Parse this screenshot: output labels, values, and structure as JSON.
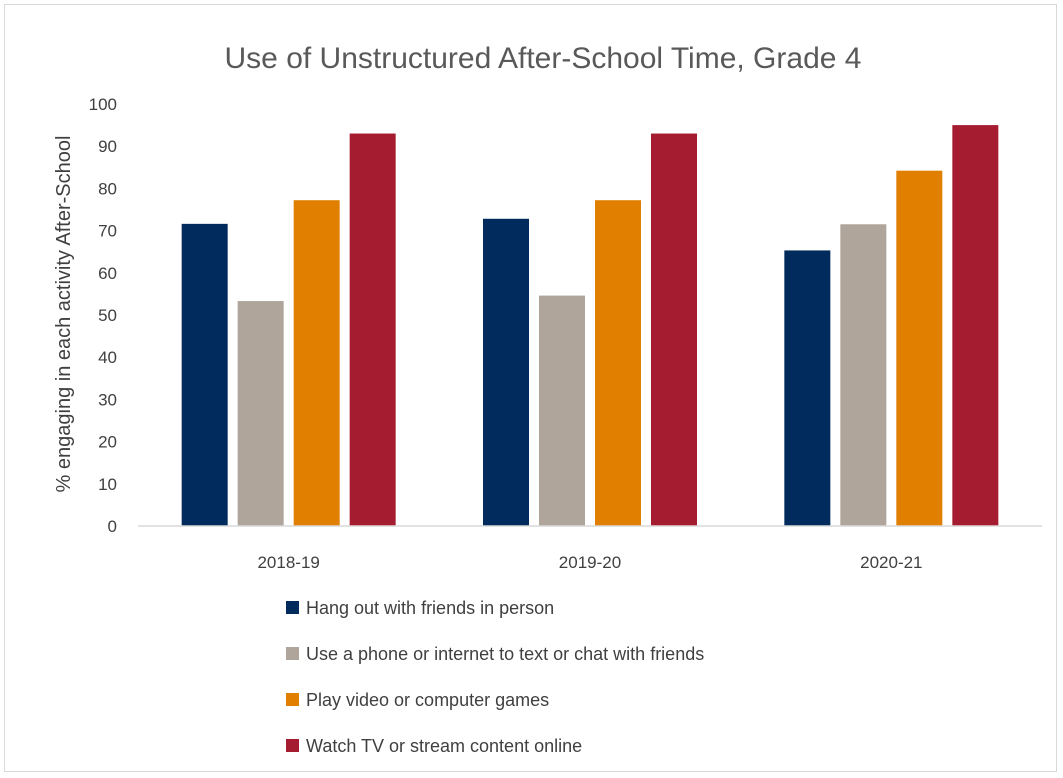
{
  "chart_data": {
    "type": "bar",
    "title": "Use of Unstructured After-School Time, Grade 4",
    "xlabel": "",
    "ylabel": "% engaging in each activity After-School",
    "categories": [
      "2018-19",
      "2019-20",
      "2020-21"
    ],
    "ylim": [
      0,
      100
    ],
    "yticks": [
      0,
      10,
      20,
      30,
      40,
      50,
      60,
      70,
      80,
      90,
      100
    ],
    "grid": false,
    "legend_position": "bottom",
    "series": [
      {
        "name": "Hang out with friends in person",
        "color": "#002b5c",
        "values": [
          71.6,
          72.8,
          65.3
        ]
      },
      {
        "name": "Use a phone or internet to text or chat with friends",
        "color": "#afa59b",
        "values": [
          53.3,
          54.6,
          71.5
        ]
      },
      {
        "name": "Play video or computer games",
        "color": "#e07f00",
        "values": [
          77.2,
          77.2,
          84.2
        ]
      },
      {
        "name": "Watch TV or stream content online",
        "color": "#a51c30",
        "values": [
          93.0,
          93.0,
          95.0
        ]
      }
    ]
  }
}
